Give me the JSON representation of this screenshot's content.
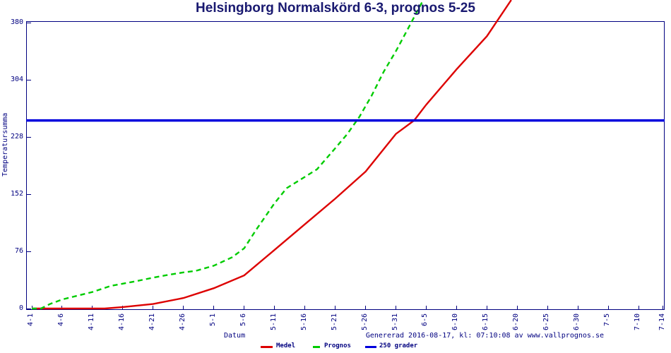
{
  "footer": {
    "generated": "Genererad 2016-08-17, kl: 07:10:08 av www.vallprognos.se"
  },
  "chart_data": {
    "type": "line",
    "title": "Helsingborg Normalskörd 6-3, prognos 5-25",
    "xlabel": "Datum",
    "ylabel": "Temperatursumma",
    "ylim": [
      0,
      380
    ],
    "y_ticks": [
      0,
      76,
      152,
      228,
      304,
      380
    ],
    "x_tick_labels": [
      "4-1",
      "4-6",
      "4-11",
      "4-16",
      "4-21",
      "4-26",
      "5-1",
      "5-6",
      "5-11",
      "5-16",
      "5-21",
      "5-26",
      "5-31",
      "6-5",
      "6-10",
      "6-15",
      "6-20",
      "6-25",
      "6-30",
      "7-5",
      "7-10",
      "7-14"
    ],
    "x_tick_days": [
      0,
      5,
      10,
      15,
      20,
      25,
      30,
      35,
      40,
      45,
      50,
      55,
      60,
      65,
      70,
      75,
      80,
      85,
      90,
      95,
      100,
      104
    ],
    "grid": false,
    "legend_position": "bottom",
    "colors": {
      "medel": "#dd0000",
      "prognos": "#00cc00",
      "threshold": "#0000dd",
      "axis": "#000080",
      "title": "#191970"
    },
    "series": [
      {
        "name": "Medel",
        "color": "#dd0000",
        "style": "solid",
        "points": [
          [
            0,
            0
          ],
          [
            5,
            0
          ],
          [
            10,
            0
          ],
          [
            12,
            0
          ],
          [
            15,
            2
          ],
          [
            20,
            6
          ],
          [
            25,
            14
          ],
          [
            30,
            27
          ],
          [
            35,
            44
          ],
          [
            40,
            78
          ],
          [
            45,
            112
          ],
          [
            50,
            146
          ],
          [
            55,
            182
          ],
          [
            60,
            232
          ],
          [
            63,
            250
          ],
          [
            65,
            271
          ],
          [
            70,
            318
          ],
          [
            75,
            362
          ],
          [
            79,
            410
          ]
        ]
      },
      {
        "name": "Prognos",
        "color": "#00cc00",
        "style": "dashed",
        "points": [
          [
            0,
            0
          ],
          [
            1.5,
            0
          ],
          [
            3,
            6
          ],
          [
            5,
            12
          ],
          [
            8,
            18
          ],
          [
            10,
            22
          ],
          [
            13,
            30
          ],
          [
            15,
            33
          ],
          [
            17,
            36
          ],
          [
            20,
            41
          ],
          [
            22,
            44
          ],
          [
            25,
            48
          ],
          [
            27,
            50
          ],
          [
            30,
            57
          ],
          [
            33,
            68
          ],
          [
            35,
            80
          ],
          [
            37,
            105
          ],
          [
            40,
            140
          ],
          [
            42,
            160
          ],
          [
            44,
            170
          ],
          [
            45,
            175
          ],
          [
            47,
            185
          ],
          [
            50,
            213
          ],
          [
            52,
            232
          ],
          [
            54,
            255
          ],
          [
            56,
            283
          ],
          [
            58,
            315
          ],
          [
            60,
            342
          ],
          [
            62,
            372
          ],
          [
            64.5,
            410
          ]
        ]
      },
      {
        "name": "250 grader",
        "color": "#0000dd",
        "style": "solid",
        "reference_line": true,
        "points": [
          [
            0,
            250
          ],
          [
            104,
            250
          ]
        ]
      }
    ],
    "annotations": {
      "threshold_value": 250,
      "medel_reaches_threshold": "6-3",
      "prognos_reaches_threshold": "5-25"
    }
  }
}
